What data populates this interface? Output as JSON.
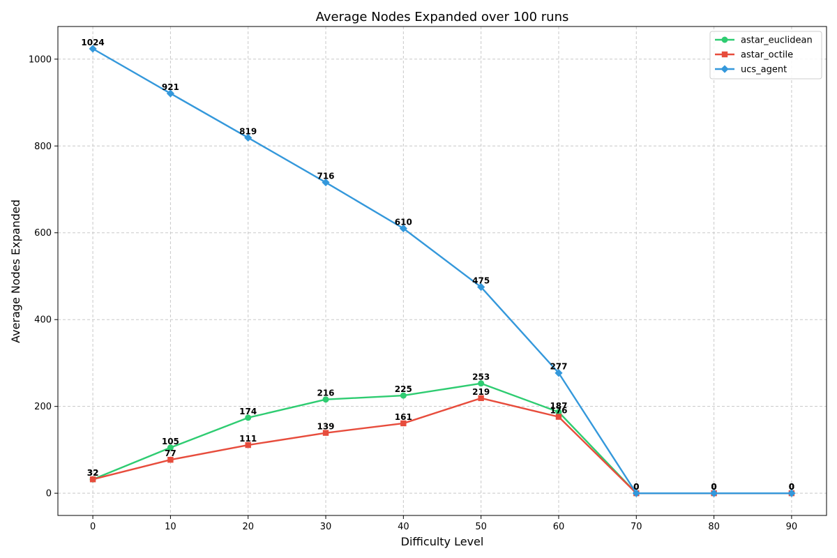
{
  "chart_data": {
    "type": "line",
    "title": "Average Nodes Expanded over 100 runs",
    "xlabel": "Difficulty Level",
    "ylabel": "Average Nodes Expanded",
    "x": [
      0,
      10,
      20,
      30,
      40,
      50,
      60,
      70,
      80,
      90
    ],
    "xlim": [
      -4.5,
      94.5
    ],
    "ylim": [
      -51.2,
      1075.2
    ],
    "xticks": [
      0,
      10,
      20,
      30,
      40,
      50,
      60,
      70,
      80,
      90
    ],
    "yticks": [
      0,
      200,
      400,
      600,
      800,
      1000
    ],
    "grid": true,
    "legend_position": "top-right",
    "series": [
      {
        "name": "astar_euclidean",
        "color": "#2ecc71",
        "marker": "circle",
        "values": [
          32,
          105,
          174,
          216,
          225,
          253,
          187,
          0,
          0,
          0
        ]
      },
      {
        "name": "astar_octile",
        "color": "#e74c3c",
        "marker": "square",
        "values": [
          32,
          77,
          111,
          139,
          161,
          219,
          176,
          0,
          0,
          0
        ]
      },
      {
        "name": "ucs_agent",
        "color": "#3498db",
        "marker": "diamond",
        "values": [
          1024,
          921,
          819,
          716,
          610,
          475,
          277,
          0,
          0,
          0
        ]
      }
    ]
  }
}
